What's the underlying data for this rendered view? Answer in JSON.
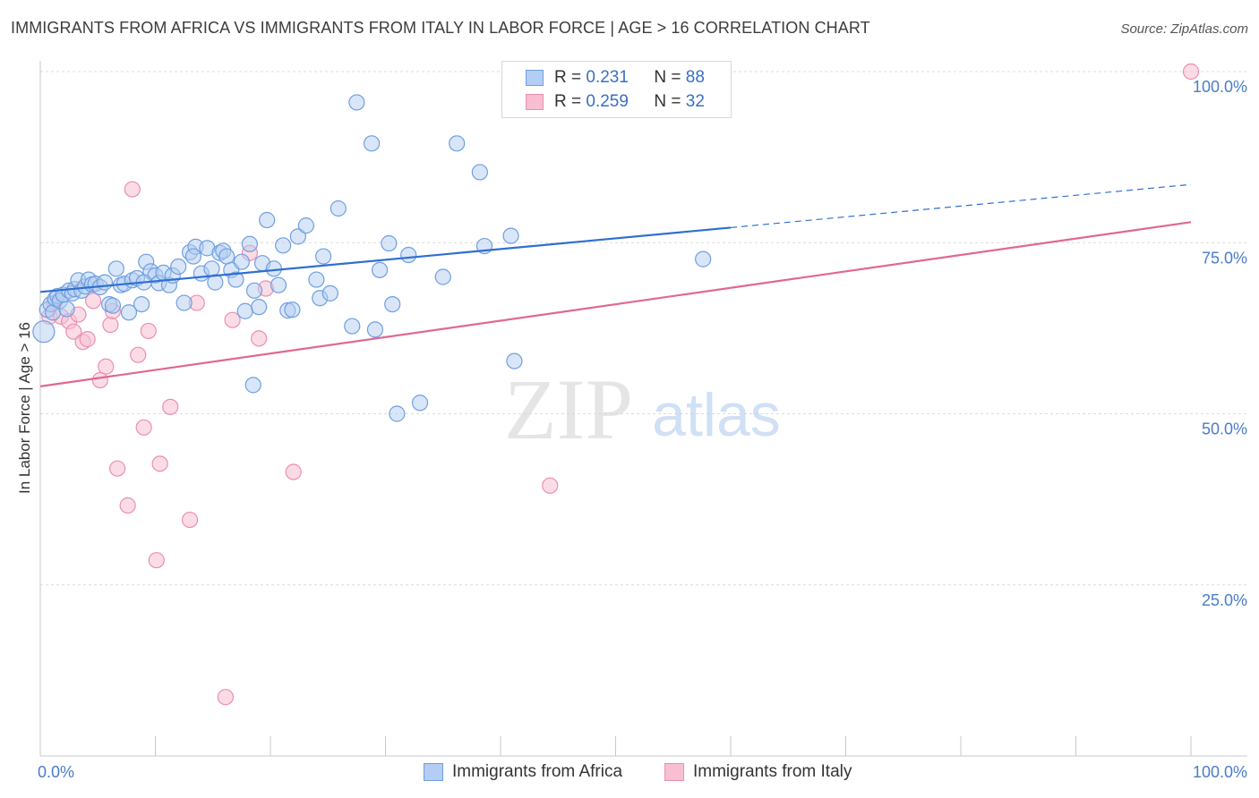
{
  "title": "IMMIGRANTS FROM AFRICA VS IMMIGRANTS FROM ITALY IN LABOR FORCE | AGE > 16 CORRELATION CHART",
  "source": "Source: ZipAtlas.com",
  "watermark": {
    "zip": "ZIP",
    "atlas": "atlas"
  },
  "legend": {
    "r_label": "R =",
    "n_label": "N =",
    "rows": [
      {
        "name": "Immigrants from Africa",
        "r": "0.231",
        "n": "88"
      },
      {
        "name": "Immigrants from Italy",
        "r": "0.259",
        "n": "32"
      }
    ]
  },
  "chart_data": {
    "type": "scatter",
    "title": "IMMIGRANTS FROM AFRICA VS IMMIGRANTS FROM ITALY IN LABOR FORCE | AGE > 16 CORRELATION CHART",
    "xlabel": "",
    "ylabel": "In Labor Force | Age > 16",
    "xlim": [
      0,
      100
    ],
    "ylim": [
      0,
      100
    ],
    "x_tick_labels": [
      "0.0%",
      "100.0%"
    ],
    "y_ticks": [
      25,
      50,
      75,
      100
    ],
    "y_tick_labels": [
      "25.0%",
      "50.0%",
      "75.0%",
      "100.0%"
    ],
    "grid": true,
    "colors": {
      "africa_fill": "#b4cdf2",
      "africa_stroke": "#6f9fe0",
      "africa_line": "#2f6fd0",
      "italy_fill": "#f7bfd1",
      "italy_stroke": "#ec8fae",
      "italy_line": "#e0688f"
    },
    "series": [
      {
        "name": "Immigrants from Africa",
        "r": 0.231,
        "n": 88,
        "trend": {
          "x0": 0,
          "y0": 67.8,
          "x1": 60,
          "y1": 77.2,
          "dash_to_x": 100,
          "dash_to_y": 83.5
        },
        "points": [
          [
            0.3,
            62.0
          ],
          [
            0.6,
            65.2
          ],
          [
            0.9,
            66.0
          ],
          [
            1.1,
            64.8
          ],
          [
            1.3,
            66.8
          ],
          [
            1.5,
            67.2
          ],
          [
            1.7,
            66.5
          ],
          [
            2.0,
            67.4
          ],
          [
            2.3,
            65.3
          ],
          [
            2.5,
            68.0
          ],
          [
            2.8,
            67.6
          ],
          [
            3.0,
            68.2
          ],
          [
            3.3,
            69.5
          ],
          [
            3.6,
            68.0
          ],
          [
            3.9,
            68.6
          ],
          [
            4.2,
            69.6
          ],
          [
            4.5,
            68.9
          ],
          [
            4.8,
            69.0
          ],
          [
            5.2,
            68.5
          ],
          [
            5.6,
            69.2
          ],
          [
            6.0,
            66.0
          ],
          [
            6.3,
            65.8
          ],
          [
            6.6,
            71.2
          ],
          [
            7.0,
            68.8
          ],
          [
            7.3,
            69.0
          ],
          [
            7.7,
            64.8
          ],
          [
            8.0,
            69.5
          ],
          [
            8.4,
            69.8
          ],
          [
            8.8,
            66.0
          ],
          [
            9.2,
            72.2
          ],
          [
            9.6,
            70.8
          ],
          [
            10.0,
            70.2
          ],
          [
            10.3,
            69.1
          ],
          [
            10.7,
            70.6
          ],
          [
            11.2,
            68.8
          ],
          [
            11.5,
            70.2
          ],
          [
            12.0,
            71.5
          ],
          [
            12.5,
            66.2
          ],
          [
            13.0,
            73.6
          ],
          [
            13.5,
            74.4
          ],
          [
            14.0,
            70.5
          ],
          [
            14.5,
            74.2
          ],
          [
            14.9,
            71.2
          ],
          [
            15.2,
            69.2
          ],
          [
            15.6,
            73.5
          ],
          [
            15.9,
            73.8
          ],
          [
            16.2,
            73.0
          ],
          [
            16.6,
            71.0
          ],
          [
            17.0,
            69.6
          ],
          [
            17.5,
            72.2
          ],
          [
            17.8,
            65.0
          ],
          [
            18.2,
            74.8
          ],
          [
            18.6,
            68.0
          ],
          [
            19.0,
            65.6
          ],
          [
            19.3,
            72.0
          ],
          [
            19.7,
            78.3
          ],
          [
            20.3,
            71.2
          ],
          [
            20.7,
            68.8
          ],
          [
            21.1,
            74.6
          ],
          [
            21.5,
            65.1
          ],
          [
            21.9,
            65.2
          ],
          [
            22.4,
            75.9
          ],
          [
            23.1,
            77.5
          ],
          [
            24.0,
            69.6
          ],
          [
            24.3,
            66.9
          ],
          [
            24.6,
            73.0
          ],
          [
            25.2,
            67.6
          ],
          [
            25.9,
            80.0
          ],
          [
            27.1,
            62.8
          ],
          [
            27.5,
            95.5
          ],
          [
            28.8,
            89.5
          ],
          [
            29.1,
            62.3
          ],
          [
            29.5,
            71.0
          ],
          [
            30.3,
            74.9
          ],
          [
            30.6,
            66.0
          ],
          [
            31.0,
            50.0
          ],
          [
            32.0,
            73.2
          ],
          [
            33.0,
            51.6
          ],
          [
            35.0,
            70.0
          ],
          [
            36.2,
            89.5
          ],
          [
            38.2,
            85.3
          ],
          [
            38.6,
            74.5
          ],
          [
            40.9,
            76.0
          ],
          [
            41.2,
            57.7
          ],
          [
            18.5,
            54.2
          ],
          [
            57.6,
            72.6
          ],
          [
            13.3,
            73.0
          ],
          [
            9.0,
            69.2
          ]
        ]
      },
      {
        "name": "Immigrants from Italy",
        "r": 0.259,
        "n": 32,
        "trend": {
          "x0": 0,
          "y0": 54.0,
          "x1": 100,
          "y1": 78.0
        },
        "points": [
          [
            0.8,
            64.2
          ],
          [
            1.2,
            66.2
          ],
          [
            1.8,
            64.2
          ],
          [
            2.5,
            63.5
          ],
          [
            2.9,
            62.0
          ],
          [
            3.3,
            64.5
          ],
          [
            3.7,
            60.5
          ],
          [
            4.1,
            60.9
          ],
          [
            4.6,
            66.5
          ],
          [
            5.2,
            54.9
          ],
          [
            5.7,
            56.9
          ],
          [
            6.1,
            63.0
          ],
          [
            6.7,
            42.0
          ],
          [
            7.6,
            36.6
          ],
          [
            8.0,
            82.8
          ],
          [
            8.5,
            58.6
          ],
          [
            9.0,
            48.0
          ],
          [
            9.4,
            62.1
          ],
          [
            10.1,
            28.6
          ],
          [
            10.4,
            42.7
          ],
          [
            11.3,
            51.0
          ],
          [
            13.0,
            34.5
          ],
          [
            13.6,
            66.2
          ],
          [
            16.1,
            8.6
          ],
          [
            16.7,
            63.7
          ],
          [
            18.2,
            73.5
          ],
          [
            19.0,
            61.0
          ],
          [
            19.6,
            68.3
          ],
          [
            22.0,
            41.5
          ],
          [
            44.3,
            39.5
          ],
          [
            100.0,
            100.0
          ],
          [
            6.3,
            65.0
          ]
        ]
      }
    ]
  }
}
